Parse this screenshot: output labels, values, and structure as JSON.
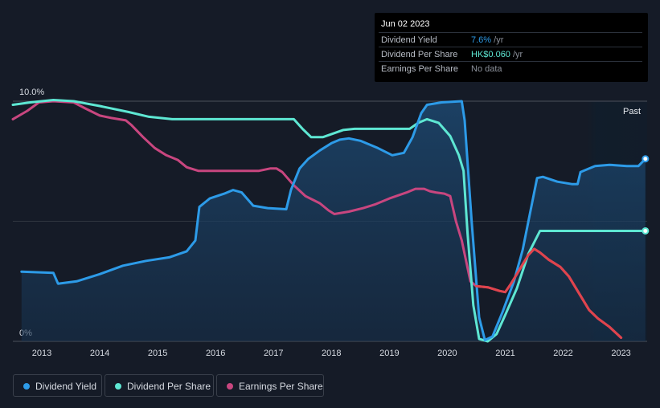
{
  "tooltip": {
    "date": "Jun 02 2023",
    "rows": [
      {
        "label": "Dividend Yield",
        "value": "7.6%",
        "unit": " /yr",
        "color": "#2d9be8"
      },
      {
        "label": "Dividend Per Share",
        "value": "HK$0.060",
        "unit": " /yr",
        "color": "#5ee7d3"
      },
      {
        "label": "Earnings Per Share",
        "value": "No data",
        "unit": "",
        "color": "#8b909a"
      }
    ]
  },
  "past_label": "Past",
  "chart_data": {
    "type": "line",
    "y_axis": {
      "top_label": "10.0%",
      "bottom_label": "0%",
      "ylim": [
        0,
        10
      ]
    },
    "x_ticks": [
      "2013",
      "2014",
      "2015",
      "2016",
      "2017",
      "2018",
      "2019",
      "2020",
      "2021",
      "2022",
      "2023"
    ],
    "xlim": [
      2012.5,
      2023.45
    ],
    "past_start": 2022.42,
    "series": [
      {
        "name": "Dividend Yield",
        "color": "#2d9be8",
        "unit": "%",
        "area": true,
        "points": [
          [
            2012.65,
            2.9
          ],
          [
            2013.2,
            2.85
          ],
          [
            2013.28,
            2.4
          ],
          [
            2013.6,
            2.5
          ],
          [
            2014.0,
            2.8
          ],
          [
            2014.4,
            3.15
          ],
          [
            2014.8,
            3.35
          ],
          [
            2015.2,
            3.5
          ],
          [
            2015.5,
            3.75
          ],
          [
            2015.65,
            4.2
          ],
          [
            2015.72,
            5.6
          ],
          [
            2015.9,
            5.95
          ],
          [
            2016.15,
            6.15
          ],
          [
            2016.3,
            6.3
          ],
          [
            2016.45,
            6.2
          ],
          [
            2016.65,
            5.65
          ],
          [
            2016.9,
            5.55
          ],
          [
            2017.22,
            5.5
          ],
          [
            2017.3,
            6.3
          ],
          [
            2017.45,
            7.2
          ],
          [
            2017.6,
            7.6
          ],
          [
            2017.8,
            7.95
          ],
          [
            2018.0,
            8.25
          ],
          [
            2018.15,
            8.4
          ],
          [
            2018.3,
            8.45
          ],
          [
            2018.5,
            8.35
          ],
          [
            2018.8,
            8.05
          ],
          [
            2019.05,
            7.75
          ],
          [
            2019.25,
            7.85
          ],
          [
            2019.4,
            8.5
          ],
          [
            2019.55,
            9.5
          ],
          [
            2019.65,
            9.85
          ],
          [
            2019.9,
            9.95
          ],
          [
            2020.25,
            10.0
          ],
          [
            2020.3,
            9.2
          ],
          [
            2020.42,
            5.0
          ],
          [
            2020.55,
            1.0
          ],
          [
            2020.65,
            0.05
          ],
          [
            2020.78,
            0.2
          ],
          [
            2020.95,
            1.2
          ],
          [
            2021.15,
            2.5
          ],
          [
            2021.3,
            3.8
          ],
          [
            2021.45,
            5.6
          ],
          [
            2021.55,
            6.8
          ],
          [
            2021.65,
            6.85
          ],
          [
            2021.9,
            6.65
          ],
          [
            2022.15,
            6.55
          ],
          [
            2022.25,
            6.55
          ],
          [
            2022.3,
            7.05
          ],
          [
            2022.45,
            7.2
          ],
          [
            2022.55,
            7.3
          ],
          [
            2022.8,
            7.35
          ],
          [
            2023.1,
            7.3
          ],
          [
            2023.3,
            7.3
          ],
          [
            2023.42,
            7.6
          ]
        ]
      },
      {
        "name": "Dividend Per Share",
        "color": "#5ee7d3",
        "unit": "%",
        "area": false,
        "points": [
          [
            2012.5,
            9.85
          ],
          [
            2012.8,
            9.95
          ],
          [
            2013.2,
            10.05
          ],
          [
            2013.55,
            10.0
          ],
          [
            2014.0,
            9.8
          ],
          [
            2014.5,
            9.55
          ],
          [
            2014.85,
            9.35
          ],
          [
            2015.25,
            9.25
          ],
          [
            2016.0,
            9.25
          ],
          [
            2016.5,
            9.25
          ],
          [
            2017.0,
            9.25
          ],
          [
            2017.35,
            9.25
          ],
          [
            2017.5,
            8.85
          ],
          [
            2017.65,
            8.5
          ],
          [
            2017.85,
            8.5
          ],
          [
            2018.2,
            8.8
          ],
          [
            2018.4,
            8.85
          ],
          [
            2019.0,
            8.85
          ],
          [
            2019.35,
            8.85
          ],
          [
            2019.5,
            9.1
          ],
          [
            2019.65,
            9.25
          ],
          [
            2019.85,
            9.1
          ],
          [
            2020.05,
            8.55
          ],
          [
            2020.2,
            7.75
          ],
          [
            2020.28,
            7.1
          ],
          [
            2020.35,
            4.5
          ],
          [
            2020.45,
            1.5
          ],
          [
            2020.55,
            0.1
          ],
          [
            2020.7,
            0.0
          ],
          [
            2020.85,
            0.3
          ],
          [
            2021.0,
            1.1
          ],
          [
            2021.2,
            2.2
          ],
          [
            2021.4,
            3.65
          ],
          [
            2021.6,
            4.6
          ],
          [
            2022.0,
            4.6
          ],
          [
            2022.5,
            4.6
          ],
          [
            2023.0,
            4.6
          ],
          [
            2023.42,
            4.6
          ]
        ]
      },
      {
        "name": "Earnings Per Share",
        "color": "#c8467f",
        "unit": "%",
        "area": false,
        "points": [
          [
            2012.5,
            9.25
          ],
          [
            2012.75,
            9.6
          ],
          [
            2012.95,
            9.95
          ],
          [
            2013.2,
            10.0
          ],
          [
            2013.55,
            9.95
          ],
          [
            2013.75,
            9.7
          ],
          [
            2014.0,
            9.4
          ],
          [
            2014.2,
            9.3
          ],
          [
            2014.45,
            9.2
          ],
          [
            2014.55,
            9.0
          ],
          [
            2014.75,
            8.5
          ],
          [
            2014.95,
            8.05
          ],
          [
            2015.15,
            7.75
          ],
          [
            2015.35,
            7.55
          ],
          [
            2015.5,
            7.25
          ],
          [
            2015.7,
            7.1
          ],
          [
            2016.0,
            7.1
          ],
          [
            2016.5,
            7.1
          ],
          [
            2016.75,
            7.1
          ],
          [
            2016.95,
            7.2
          ],
          [
            2017.05,
            7.2
          ],
          [
            2017.15,
            7.05
          ],
          [
            2017.35,
            6.5
          ],
          [
            2017.55,
            6.05
          ],
          [
            2017.8,
            5.75
          ],
          [
            2017.95,
            5.45
          ],
          [
            2018.05,
            5.3
          ],
          [
            2018.3,
            5.4
          ],
          [
            2018.55,
            5.55
          ],
          [
            2018.75,
            5.7
          ],
          [
            2019.0,
            5.95
          ],
          [
            2019.3,
            6.2
          ],
          [
            2019.45,
            6.35
          ],
          [
            2019.6,
            6.35
          ],
          [
            2019.7,
            6.25
          ],
          [
            2019.8,
            6.2
          ],
          [
            2019.95,
            6.15
          ],
          [
            2020.05,
            6.05
          ],
          [
            2020.15,
            5.0
          ],
          [
            2020.25,
            4.2
          ],
          [
            2020.4,
            2.5
          ],
          [
            2020.5,
            2.3
          ],
          [
            2020.7,
            2.25
          ],
          [
            2020.9,
            2.1
          ],
          [
            2021.0,
            2.05
          ],
          [
            2021.1,
            2.4
          ],
          [
            2021.25,
            3.0
          ],
          [
            2021.4,
            3.6
          ],
          [
            2021.5,
            3.85
          ],
          [
            2021.6,
            3.7
          ],
          [
            2021.75,
            3.4
          ],
          [
            2021.95,
            3.1
          ],
          [
            2022.1,
            2.7
          ],
          [
            2022.3,
            1.9
          ],
          [
            2022.45,
            1.3
          ],
          [
            2022.6,
            0.95
          ],
          [
            2022.8,
            0.6
          ],
          [
            2023.0,
            0.15
          ]
        ]
      }
    ],
    "end_markers": [
      "Dividend Yield",
      "Dividend Per Share"
    ]
  },
  "legend": [
    {
      "label": "Dividend Yield",
      "color": "#2d9be8"
    },
    {
      "label": "Dividend Per Share",
      "color": "#5ee7d3"
    },
    {
      "label": "Earnings Per Share",
      "color": "#c8467f"
    }
  ]
}
